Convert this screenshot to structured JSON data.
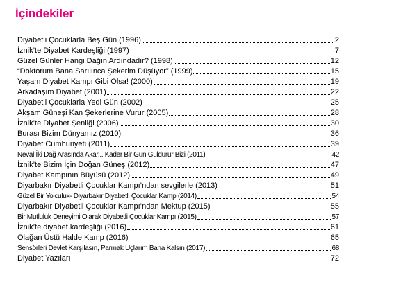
{
  "header": {
    "title": "İçindekiler"
  },
  "toc": [
    {
      "title": "Diyabetli Çocuklarla Beş Gün (1996)",
      "page": "2"
    },
    {
      "title": "İznik’te Diyabet Kardeşliği (1997)",
      "page": "7"
    },
    {
      "title": "Güzel Günler Hangi Dağın Ardındadır? (1998)",
      "page": "12"
    },
    {
      "title": "“Doktorum Bana Sarılınca Şekerim Düşüyor” (1999)",
      "page": "15"
    },
    {
      "title": "Yaşam Diyabet Kampı Gibi Olsa! (2000)",
      "page": "19"
    },
    {
      "title": "Arkadaşım Diyabet (2001)",
      "page": "22"
    },
    {
      "title": "Diyabetli Çocuklarla Yedi Gün (2002)",
      "page": "25"
    },
    {
      "title": "Akşam Güneşi Kan Şekerlerine Vurur (2005)",
      "page": "28"
    },
    {
      "title": "İznik’te Diyabet Şenliği (2006)",
      "page": "30"
    },
    {
      "title": "Burası Bizim Dünyamız (2010)",
      "page": "36"
    },
    {
      "title": "Diyabet Cumhuriyeti (2011)",
      "page": "39"
    },
    {
      "title": "Neval İki Dağ Arasında Akar... Kader Bir Gün Güldürür Bizi (2011)",
      "page": "42"
    },
    {
      "title": "İznik’te Bizim İçin Doğan Güneş (2012)",
      "page": "47"
    },
    {
      "title": "Diyabet Kampının Büyüsü (2012)",
      "page": "49"
    },
    {
      "title": "Diyarbakır Diyabetli Çocuklar Kampı’ndan sevgilerle (2013)",
      "page": "51"
    },
    {
      "title": "Güzel Bir Yolculuk- Diyarbakır Diyabetli Çocuklar Kamp (2014)",
      "page": "54"
    },
    {
      "title": "Diyarbakır Diyabetli Çocuklar Kampı’ndan Mektup (2015)",
      "page": "55"
    },
    {
      "title": "Bir Mutluluk Deneyimi Olarak Diyabetli Çocuklar Kampı (2015)",
      "page": "57"
    },
    {
      "title": "İznik’te diyabet kardeşliği (2016)",
      "page": "61"
    },
    {
      "title": "Olağan Üstü Halde Kamp (2016)",
      "page": "65"
    },
    {
      "title": "Sensörleri Devlet Karşılasın, Parmak Uçlarım Bana Kalsın (2017)",
      "page": "68"
    },
    {
      "title": "Diyabet Yazıları",
      "page": "72"
    }
  ]
}
